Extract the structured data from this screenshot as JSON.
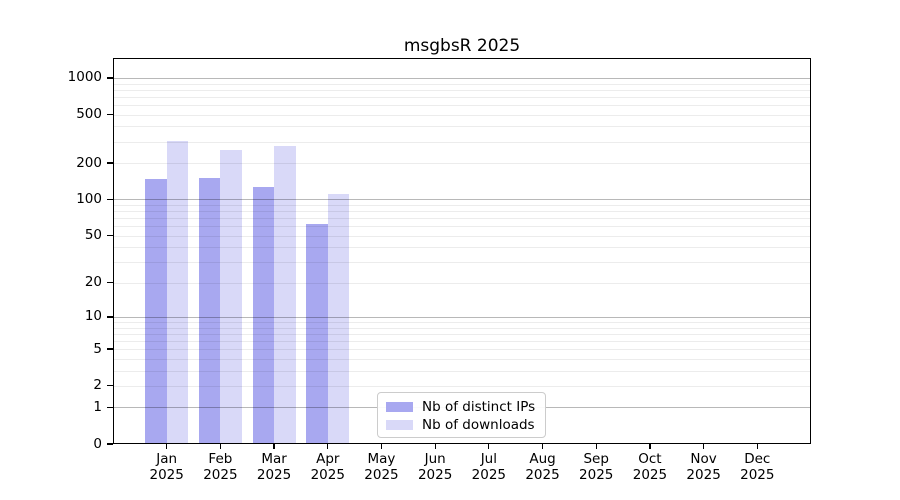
{
  "chart_data": {
    "type": "bar",
    "title": "msgbsR 2025",
    "categories": [
      "Jan",
      "Feb",
      "Mar",
      "Apr",
      "May",
      "Jun",
      "Jul",
      "Aug",
      "Sep",
      "Oct",
      "Nov",
      "Dec"
    ],
    "xtick_year_suffix": "2025",
    "series": [
      {
        "name": "Nb of distinct IPs",
        "color": "#a8a8f0",
        "values": [
          148,
          150,
          126,
          62,
          null,
          null,
          null,
          null,
          null,
          null,
          null,
          null
        ]
      },
      {
        "name": "Nb of downloads",
        "color": "#d9d9f8",
        "values": [
          305,
          257,
          277,
          110,
          null,
          null,
          null,
          null,
          null,
          null,
          null,
          null
        ]
      }
    ],
    "yticks": [
      0,
      1,
      2,
      5,
      10,
      20,
      50,
      100,
      200,
      500,
      1000
    ],
    "ylim": [
      0,
      1400
    ],
    "yscale": "log10(value+1)",
    "grid": "horizontal, minor light + major dark at powers of 10, drawn over bars",
    "legend_position": "lower center inside plot",
    "axis_color": "#000000",
    "background_color": "#ffffff"
  }
}
